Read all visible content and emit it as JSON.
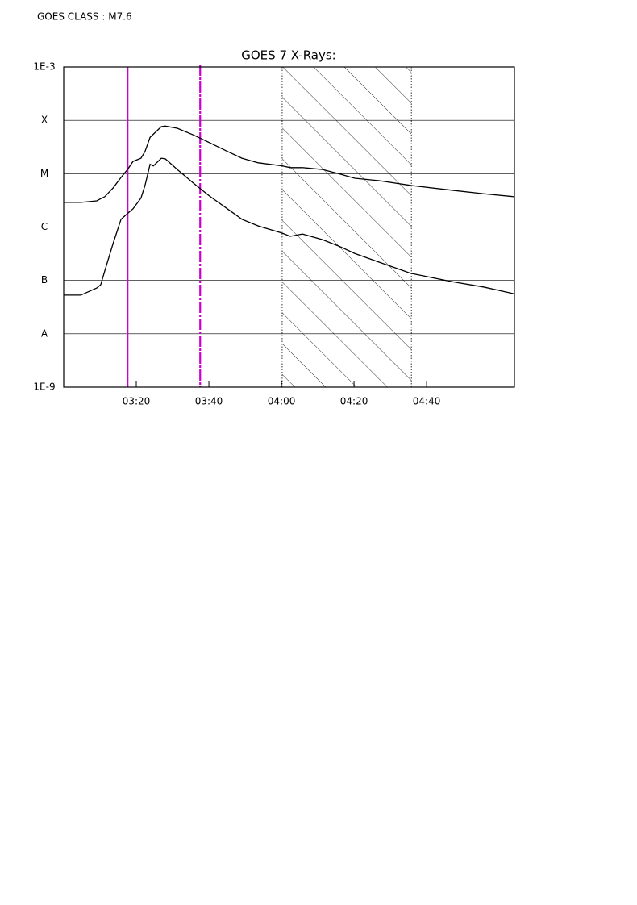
{
  "chart_data": {
    "type": "line",
    "class_label": "GOES CLASS : M7.6",
    "title": "GOES 7 X-Rays:",
    "x": [
      180,
      184.7,
      189.1,
      190.2,
      191.3,
      193.6,
      195.8,
      197.6,
      199.1,
      201.3,
      202.4,
      203.8,
      204.7,
      206.9,
      208,
      211.3,
      215.8,
      220.2,
      224.7,
      229.1,
      233.6,
      240.2,
      242.4,
      245.8,
      251.3,
      255.8,
      260.2,
      266.9,
      275.8,
      286.9,
      295.8,
      304.2
    ],
    "series": [
      {
        "color": "#000000",
        "values": [
          2.9e-06,
          2.9e-06,
          3.1e-06,
          3.4e-06,
          3.7e-06,
          5.4e-06,
          8.5e-06,
          1.2e-05,
          1.7e-05,
          1.95e-05,
          2.6e-05,
          4.8e-05,
          5.5e-05,
          7.6e-05,
          7.8e-05,
          7.1e-05,
          5.3e-05,
          3.8e-05,
          2.7e-05,
          1.95e-05,
          1.6e-05,
          1.4e-05,
          1.3e-05,
          1.3e-05,
          1.2e-05,
          1e-05,
          8.2e-06,
          7.4e-06,
          6e-06,
          4.9e-06,
          4.2e-06,
          3.7e-06
        ]
      },
      {
        "color": "#000000",
        "values": [
          5.3e-08,
          5.3e-08,
          7.2e-08,
          8.3e-08,
          1.5e-07,
          4.9e-07,
          1.4e-06,
          1.8e-06,
          2.2e-06,
          3.5e-06,
          6e-06,
          1.5e-05,
          1.4e-05,
          1.95e-05,
          1.9e-05,
          1.2e-05,
          6.6e-06,
          3.8e-06,
          2.3e-06,
          1.4e-06,
          1.05e-06,
          7.7e-07,
          6.7e-07,
          7.4e-07,
          5.8e-07,
          4.4e-07,
          3.2e-07,
          2.2e-07,
          1.35e-07,
          9.5e-08,
          7.5e-08,
          5.6e-08
        ]
      }
    ],
    "xlim": [
      180,
      304.2
    ],
    "xticks": [
      {
        "value": 200,
        "label": "03:20"
      },
      {
        "value": 220,
        "label": "03:40"
      },
      {
        "value": 240,
        "label": "04:00"
      },
      {
        "value": 260,
        "label": "04:20"
      },
      {
        "value": 280,
        "label": "04:40"
      }
    ],
    "ylim": [
      1e-09,
      0.001
    ],
    "log_y": true,
    "yticks": [
      {
        "value": 0.001,
        "label": "1E-3"
      },
      {
        "value": 0.0001,
        "label": "X"
      },
      {
        "value": 1e-05,
        "label": "M"
      },
      {
        "value": 1e-06,
        "label": "C"
      },
      {
        "value": 1e-07,
        "label": "B"
      },
      {
        "value": 1e-08,
        "label": "A"
      },
      {
        "value": 1e-09,
        "label": "1E-9"
      }
    ],
    "grid": true,
    "vlines": [
      {
        "x": 197.6,
        "color": "#cc00cc",
        "dashed": false
      },
      {
        "x": 217.6,
        "color": "#cc00cc",
        "dashed": true
      }
    ],
    "shaded_region": {
      "x0": 240.2,
      "x1": 275.8
    }
  }
}
